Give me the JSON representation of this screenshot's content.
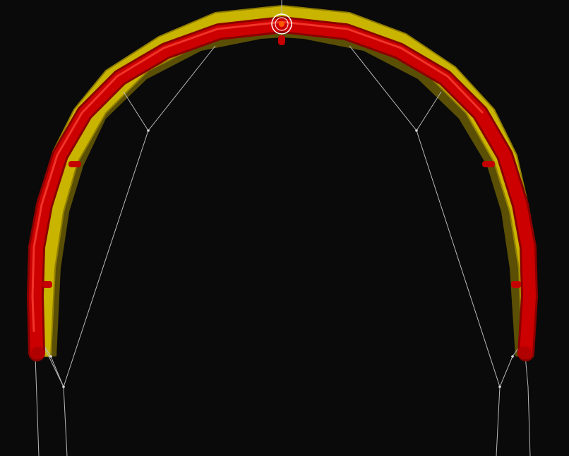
{
  "viewport": {
    "background": "#0a0a0a"
  },
  "scene": {
    "canopy_color": "#c9b400",
    "canopy_edge_color": "#8f7d00",
    "tube_color": "#c40000",
    "tube_highlight": "#ff3a2a",
    "line_color": "#b8b8b8",
    "gizmo_color": "#ffffff",
    "gizmo_center": "#ff5a00"
  },
  "icons": {
    "pivot": "target-gizmo-icon"
  }
}
